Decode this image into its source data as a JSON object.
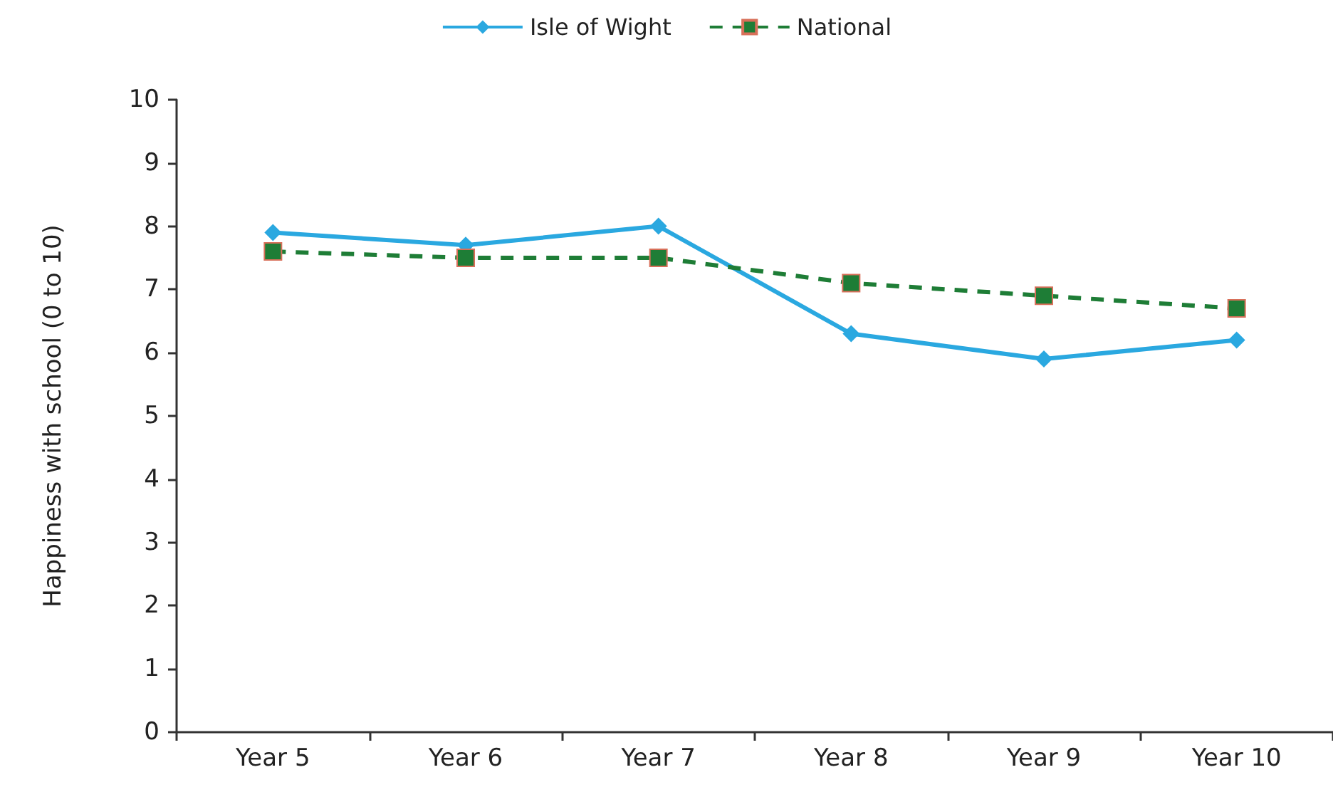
{
  "chart_data": {
    "type": "line",
    "ylabel": "Happiness with school (0 to 10)",
    "categories": [
      "Year 5",
      "Year 6",
      "Year 7",
      "Year 8",
      "Year 9",
      "Year 10"
    ],
    "series": [
      {
        "name": "Isle of Wight",
        "color": "#2aa8e0",
        "marker": "diamond",
        "line_style": "solid",
        "values": [
          7.9,
          7.7,
          8.0,
          6.3,
          5.9,
          6.2
        ]
      },
      {
        "name": "National",
        "color": "#1e7d36",
        "marker": "square",
        "line_style": "dashed",
        "values": [
          7.6,
          7.5,
          7.5,
          7.1,
          6.9,
          6.7
        ]
      }
    ],
    "ylim": [
      0,
      10
    ],
    "yticks": [
      0,
      1,
      2,
      3,
      4,
      5,
      6,
      7,
      8,
      9,
      10
    ],
    "grid": false,
    "legend": "top"
  }
}
